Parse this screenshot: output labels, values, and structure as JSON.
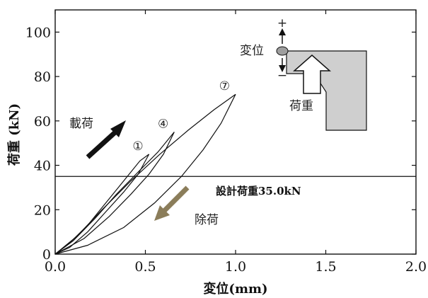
{
  "chart_data": {
    "type": "line",
    "title": "",
    "xlabel": "変位(mm)",
    "ylabel": "荷重 (kN)",
    "xlim": [
      0,
      2.0
    ],
    "ylim": [
      0,
      110
    ],
    "xticks": [
      0,
      0.5,
      1.0,
      1.5,
      2.0
    ],
    "xtick_labels": [
      "0.0",
      "0.5",
      "1.0",
      "1.5",
      "2.0"
    ],
    "yticks": [
      0,
      20,
      40,
      60,
      80,
      100
    ],
    "ytick_labels": [
      "0",
      "20",
      "40",
      "60",
      "80",
      "100"
    ],
    "grid": false,
    "reference_line": {
      "y": 35.0,
      "label": "設計荷重35.0kN"
    },
    "series": [
      {
        "cycle_label": "①",
        "loading": [
          [
            0,
            0
          ],
          [
            0.08,
            5
          ],
          [
            0.18,
            13
          ],
          [
            0.28,
            23
          ],
          [
            0.38,
            33
          ],
          [
            0.47,
            42
          ],
          [
            0.52,
            45
          ]
        ],
        "unloading": [
          [
            0.52,
            45
          ],
          [
            0.46,
            36
          ],
          [
            0.38,
            28
          ],
          [
            0.28,
            19
          ],
          [
            0.18,
            10
          ],
          [
            0.08,
            3
          ],
          [
            0,
            0
          ]
        ]
      },
      {
        "cycle_label": "④",
        "loading": [
          [
            0,
            0
          ],
          [
            0.1,
            6
          ],
          [
            0.22,
            16
          ],
          [
            0.34,
            27
          ],
          [
            0.46,
            37
          ],
          [
            0.57,
            46
          ],
          [
            0.66,
            55
          ]
        ],
        "unloading": [
          [
            0.66,
            55
          ],
          [
            0.6,
            45
          ],
          [
            0.52,
            36
          ],
          [
            0.42,
            27
          ],
          [
            0.3,
            17
          ],
          [
            0.16,
            7
          ],
          [
            0,
            0
          ]
        ]
      },
      {
        "cycle_label": "⑦",
        "loading": [
          [
            0,
            0
          ],
          [
            0.12,
            8
          ],
          [
            0.26,
            20
          ],
          [
            0.42,
            33
          ],
          [
            0.58,
            45
          ],
          [
            0.74,
            56
          ],
          [
            0.88,
            65
          ],
          [
            1.0,
            72
          ]
        ],
        "unloading": [
          [
            1.0,
            72
          ],
          [
            0.92,
            59
          ],
          [
            0.82,
            47
          ],
          [
            0.7,
            35
          ],
          [
            0.55,
            23
          ],
          [
            0.38,
            12
          ],
          [
            0.18,
            4
          ],
          [
            0,
            0
          ]
        ]
      }
    ],
    "annotations": [
      {
        "text": "載荷",
        "arrow": "loading",
        "color": "#111111"
      },
      {
        "text": "除荷",
        "arrow": "unloading",
        "color": "#8b7d5a"
      }
    ],
    "inset": {
      "displacement_label": "変位",
      "plus": "+",
      "minus": "−",
      "load_label": "荷重",
      "fill_color": "#cfcfcf",
      "marker_color": "#9e9e9e"
    }
  }
}
